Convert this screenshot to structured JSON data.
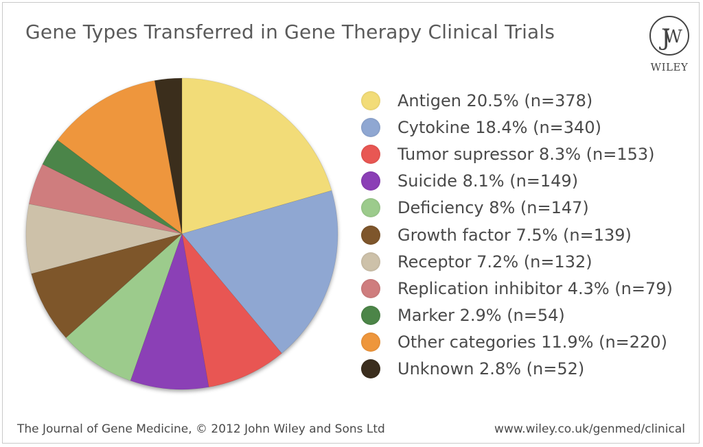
{
  "title": "Gene Types Transferred in Gene Therapy Clinical Trials",
  "logo": {
    "icon": "wiley-jw-monogram-icon",
    "text": "WILEY"
  },
  "footer": {
    "left": "The Journal of Gene Medicine, © 2012 John Wiley and Sons Ltd",
    "right": "www.wiley.co.uk/genmed/clinical"
  },
  "chart_data": {
    "type": "pie",
    "title": "Gene Types Transferred in Gene Therapy Clinical Trials",
    "legend_position": "right",
    "start_angle": "12 o'clock, clockwise",
    "slices": [
      {
        "label": "Antigen 20.5% (n=378)",
        "name": "Antigen",
        "percent": 20.5,
        "n": 378,
        "color": "#f2dc78"
      },
      {
        "label": "Cytokine 18.4% (n=340)",
        "name": "Cytokine",
        "percent": 18.4,
        "n": 340,
        "color": "#8fa7d2"
      },
      {
        "label": "Tumor supressor 8.3% (n=153)",
        "name": "Tumor supressor",
        "percent": 8.3,
        "n": 153,
        "color": "#e85753"
      },
      {
        "label": "Suicide 8.1% (n=149)",
        "name": "Suicide",
        "percent": 8.1,
        "n": 149,
        "color": "#8b3fb6"
      },
      {
        "label": "Deficiency 8% (n=147)",
        "name": "Deficiency",
        "percent": 8,
        "n": 147,
        "color": "#9ccb8c"
      },
      {
        "label": "Growth factor 7.5% (n=139)",
        "name": "Growth factor",
        "percent": 7.5,
        "n": 139,
        "color": "#7e562c"
      },
      {
        "label": "Receptor 7.2% (n=132)",
        "name": "Receptor",
        "percent": 7.2,
        "n": 132,
        "color": "#cdc1a9"
      },
      {
        "label": "Replication inhibitor 4.3% (n=79)",
        "name": "Replication inhibitor",
        "percent": 4.3,
        "n": 79,
        "color": "#cf7d7e"
      },
      {
        "label": "Marker 2.9% (n=54)",
        "name": "Marker",
        "percent": 2.9,
        "n": 54,
        "color": "#4c8548"
      },
      {
        "label": "Other categories 11.9% (n=220)",
        "name": "Other categories",
        "percent": 11.9,
        "n": 220,
        "color": "#ee963c"
      },
      {
        "label": "Unknown 2.8% (n=52)",
        "name": "Unknown",
        "percent": 2.8,
        "n": 52,
        "color": "#3b2e1e"
      }
    ]
  }
}
